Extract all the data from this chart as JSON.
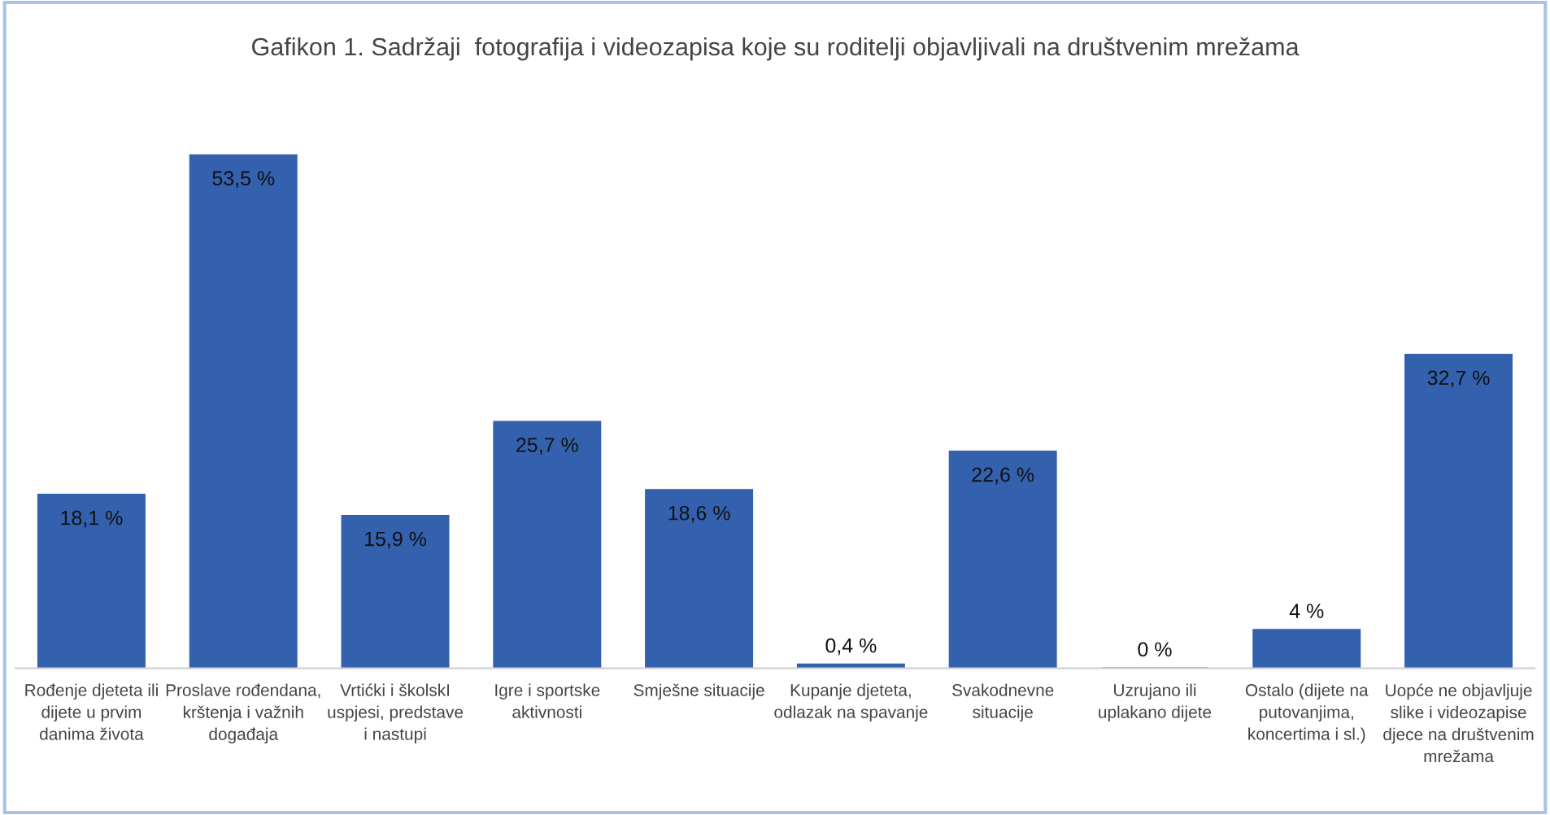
{
  "chart_data": {
    "type": "bar",
    "title": "Gafikon 1. Sadržaji  fotografija i videozapisa koje su roditelji objavljivali na društvenim mrežama",
    "categories": [
      "Rođenje djeteta ili dijete u prvim danima života",
      "Proslave rođendana, krštenja i važnih događaja",
      "Vrtićki i školskI uspjesi, predstave i nastupi",
      "Igre i sportske aktivnosti",
      "Smješne situacije",
      "Kupanje djeteta, odlazak na spavanje",
      "Svakodnevne situacije",
      "Uzrujano ili uplakano dijete",
      "Ostalo (dijete na putovanjima, koncertima i sl.)",
      "Uopće ne objavljuje slike i videozapise djece na društvenim mrežama"
    ],
    "values": [
      18.1,
      53.5,
      15.9,
      25.7,
      18.6,
      0.4,
      22.6,
      0,
      4,
      32.7
    ],
    "value_labels": [
      "18,1 %",
      "53,5 %",
      "15,9 %",
      "25,7 %",
      "18,6 %",
      "0,4 %",
      "22,6 %",
      "0 %",
      "4 %",
      "32,7 %"
    ],
    "color": "#3461ad"
  }
}
